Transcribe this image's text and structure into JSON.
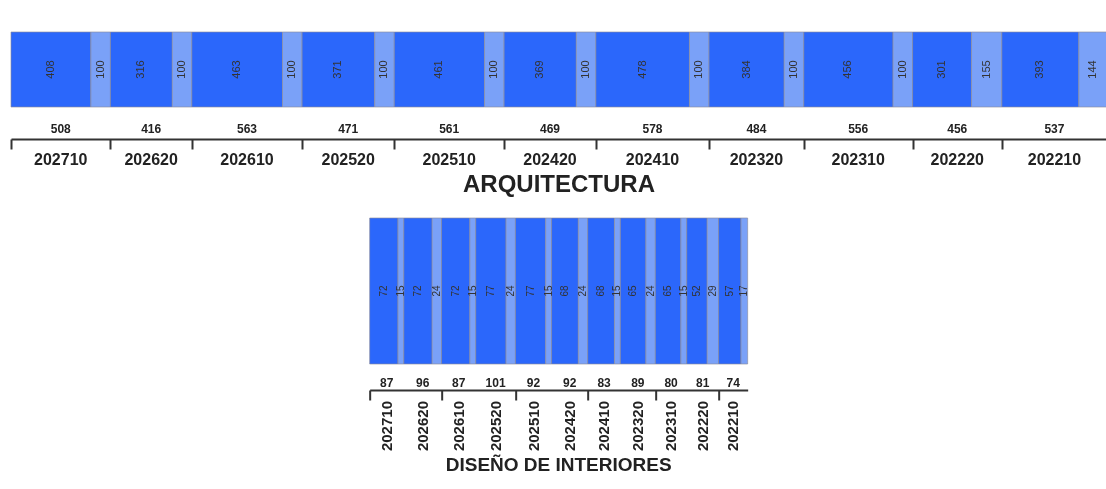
{
  "chart_data": [
    {
      "type": "bar",
      "orientation": "horizontal",
      "stacked": true,
      "title": "ARQUITECTURA",
      "categories": [
        null
      ],
      "data_labels": true,
      "grid": false,
      "legend": false,
      "xlim": [
        0,
        5599
      ],
      "annotations": [
        "508",
        "416",
        "563",
        "471",
        "561",
        "469",
        "578",
        "484",
        "556",
        "456",
        "537",
        "202710",
        "202620",
        "202610",
        "202520",
        "202510",
        "202420",
        "202410",
        "202320",
        "202310",
        "202220",
        "202210"
      ],
      "series": [
        {
          "color": "#2b67fb",
          "values": [
            408
          ]
        },
        {
          "color": "#7aa1f8",
          "values": [
            100
          ]
        },
        {
          "color": "#2b67fb",
          "values": [
            316
          ]
        },
        {
          "color": "#7aa1f8",
          "values": [
            100
          ]
        },
        {
          "color": "#2b67fb",
          "values": [
            463
          ]
        },
        {
          "color": "#7aa1f8",
          "values": [
            100
          ]
        },
        {
          "color": "#2b67fb",
          "values": [
            371
          ]
        },
        {
          "color": "#7aa1f8",
          "values": [
            100
          ]
        },
        {
          "color": "#2b67fb",
          "values": [
            461
          ]
        },
        {
          "color": "#7aa1f8",
          "values": [
            100
          ]
        },
        {
          "color": "#2b67fb",
          "values": [
            369
          ]
        },
        {
          "color": "#7aa1f8",
          "values": [
            100
          ]
        },
        {
          "color": "#2b67fb",
          "values": [
            478
          ]
        },
        {
          "color": "#7aa1f8",
          "values": [
            100
          ]
        },
        {
          "color": "#2b67fb",
          "values": [
            384
          ]
        },
        {
          "color": "#7aa1f8",
          "values": [
            100
          ]
        },
        {
          "color": "#2b67fb",
          "values": [
            456
          ]
        },
        {
          "color": "#7aa1f8",
          "values": [
            100
          ]
        },
        {
          "color": "#2b67fb",
          "values": [
            301
          ]
        },
        {
          "color": "#7aa1f8",
          "values": [
            155
          ]
        },
        {
          "color": "#2b67fb",
          "values": [
            393
          ]
        },
        {
          "color": "#7aa1f8",
          "values": [
            144
          ]
        }
      ]
    },
    {
      "type": "bar",
      "orientation": "horizontal",
      "stacked": true,
      "title": "DISEÑO DE INTERIORES",
      "categories": [
        null
      ],
      "data_labels": true,
      "grid": false,
      "legend": false,
      "xlim": [
        0,
        962
      ],
      "annotations": [
        "87",
        "96",
        "87",
        "101",
        "92",
        "92",
        "83",
        "89",
        "80",
        "81",
        "74",
        "202710",
        "202620",
        "202610",
        "202520",
        "202510",
        "202420",
        "202410",
        "202320",
        "202310",
        "202220",
        "202210"
      ],
      "series": [
        {
          "color": "#2b67fb",
          "values": [
            72
          ]
        },
        {
          "color": "#7aa1f8",
          "values": [
            15
          ]
        },
        {
          "color": "#2b67fb",
          "values": [
            72
          ]
        },
        {
          "color": "#7aa1f8",
          "values": [
            24
          ]
        },
        {
          "color": "#2b67fb",
          "values": [
            72
          ]
        },
        {
          "color": "#7aa1f8",
          "values": [
            15
          ]
        },
        {
          "color": "#2b67fb",
          "values": [
            77
          ]
        },
        {
          "color": "#7aa1f8",
          "values": [
            24
          ]
        },
        {
          "color": "#2b67fb",
          "values": [
            77
          ]
        },
        {
          "color": "#7aa1f8",
          "values": [
            15
          ]
        },
        {
          "color": "#2b67fb",
          "values": [
            68
          ]
        },
        {
          "color": "#7aa1f8",
          "values": [
            24
          ]
        },
        {
          "color": "#2b67fb",
          "values": [
            68
          ]
        },
        {
          "color": "#7aa1f8",
          "values": [
            15
          ]
        },
        {
          "color": "#2b67fb",
          "values": [
            65
          ]
        },
        {
          "color": "#7aa1f8",
          "values": [
            24
          ]
        },
        {
          "color": "#2b67fb",
          "values": [
            65
          ]
        },
        {
          "color": "#7aa1f8",
          "values": [
            15
          ]
        },
        {
          "color": "#2b67fb",
          "values": [
            52
          ]
        },
        {
          "color": "#7aa1f8",
          "values": [
            29
          ]
        },
        {
          "color": "#2b67fb",
          "values": [
            57
          ]
        },
        {
          "color": "#7aa1f8",
          "values": [
            17
          ]
        }
      ]
    }
  ]
}
